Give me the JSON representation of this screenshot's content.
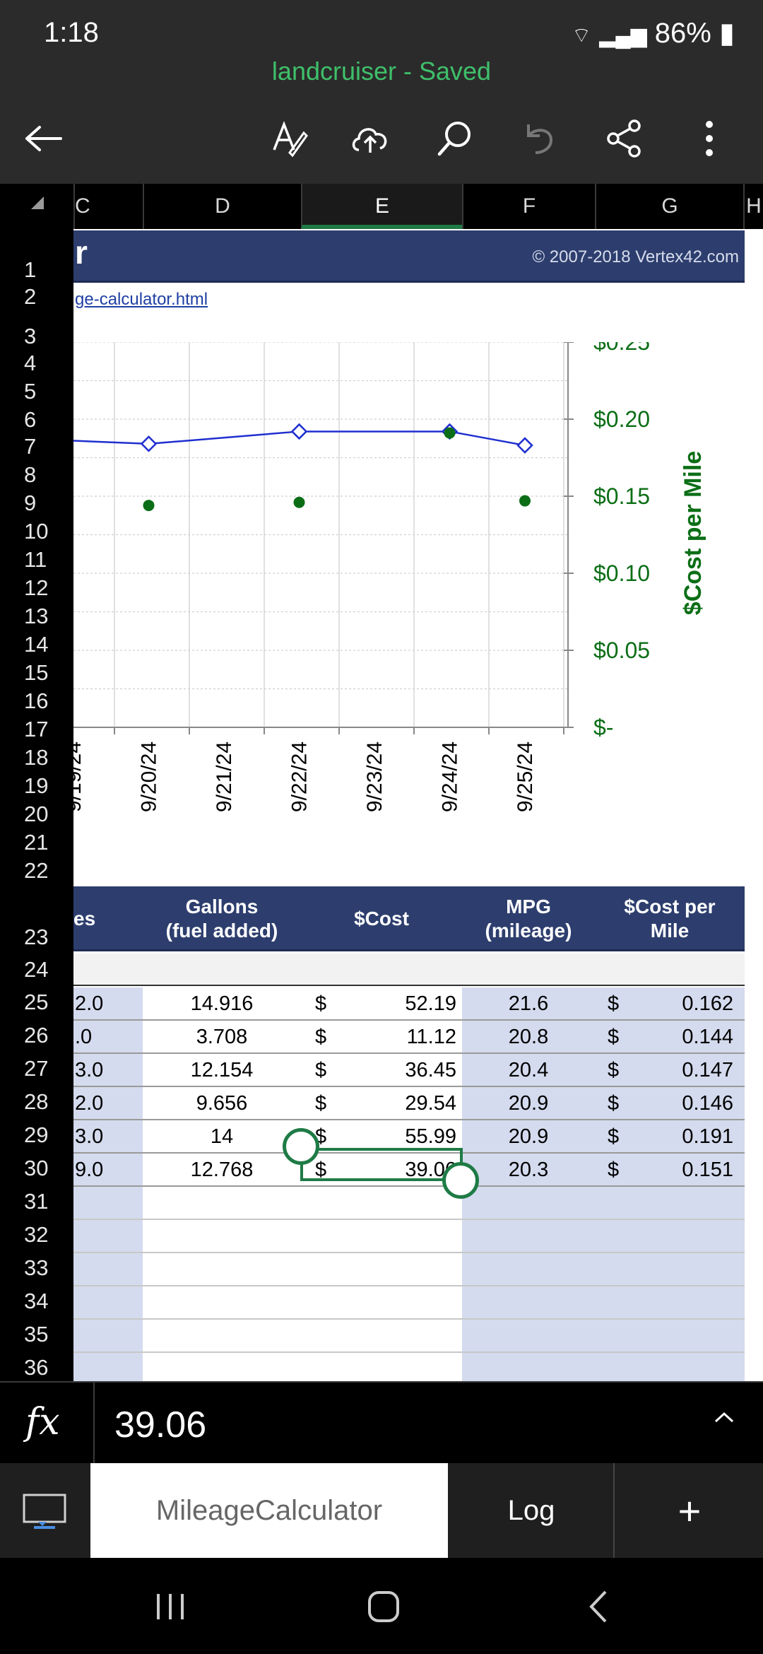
{
  "status": {
    "time": "1:18",
    "battery": "86%"
  },
  "title": "landcruiser - Saved",
  "toolbar": {
    "icons": [
      "back-arrow-icon",
      "draw-pen-icon",
      "cloud-upload-icon",
      "search-icon",
      "undo-icon",
      "share-icon",
      "more-vertical-icon"
    ]
  },
  "columns": {
    "c": "C",
    "d": "D",
    "e": "E",
    "f": "F",
    "g": "G",
    "h": "H"
  },
  "rows": [
    "1",
    "2",
    "3",
    "4",
    "5",
    "6",
    "7",
    "8",
    "9",
    "10",
    "11",
    "12",
    "13",
    "14",
    "15",
    "16",
    "17",
    "18",
    "19",
    "20",
    "21",
    "22",
    "23",
    "24",
    "25",
    "26",
    "27",
    "28",
    "29",
    "30",
    "31",
    "32",
    "33",
    "34",
    "35",
    "36"
  ],
  "sheet": {
    "banner_left": "r",
    "copyright": "© 2007-2018 Vertex42.com",
    "link": "ge-calculator.html"
  },
  "chart_data": {
    "type": "line",
    "x": [
      "9/19/24",
      "9/20/24",
      "9/21/24",
      "9/22/24",
      "9/23/24",
      "9/24/24",
      "9/25/24"
    ],
    "series": [
      {
        "name": "",
        "style": "line-diamond",
        "color": "#1f2fd0",
        "values": [
          0.186,
          0.184,
          null,
          0.192,
          null,
          0.192,
          0.183
        ]
      },
      {
        "name": "",
        "style": "dot",
        "color": "#0b6e16",
        "values": [
          null,
          0.144,
          null,
          0.146,
          null,
          0.191,
          0.147
        ]
      }
    ],
    "y2_ticks": [
      "$0.25",
      "$0.20",
      "$0.15",
      "$0.10",
      "$0.05",
      "$-"
    ],
    "y2_values": [
      0.25,
      0.2,
      0.15,
      0.1,
      0.05,
      0.0
    ],
    "y2label": "$Cost per Mile",
    "ylim": [
      0,
      0.25
    ],
    "grid": true,
    "y2_color": "#0b6e16"
  },
  "table": {
    "headers": {
      "c": "es",
      "d": "Gallons\n(fuel added)",
      "e": "$Cost",
      "f": "MPG\n(mileage)",
      "g": "$Cost per\nMile"
    },
    "rows": [
      {
        "c": "2.0",
        "d": "14.916",
        "e_cur": "$",
        "e": "52.19",
        "f": "21.6",
        "g_cur": "$",
        "g": "0.162"
      },
      {
        "c": ".0",
        "d": "3.708",
        "e_cur": "$",
        "e": "11.12",
        "f": "20.8",
        "g_cur": "$",
        "g": "0.144"
      },
      {
        "c": "3.0",
        "d": "12.154",
        "e_cur": "$",
        "e": "36.45",
        "f": "20.4",
        "g_cur": "$",
        "g": "0.147"
      },
      {
        "c": "2.0",
        "d": "9.656",
        "e_cur": "$",
        "e": "29.54",
        "f": "20.9",
        "g_cur": "$",
        "g": "0.146"
      },
      {
        "c": "3.0",
        "d": "14",
        "e_cur": "$",
        "e": "55.99",
        "f": "20.9",
        "g_cur": "$",
        "g": "0.191"
      },
      {
        "c": "9.0",
        "d": "12.768",
        "e_cur": "$",
        "e": "39.06",
        "f": "20.3",
        "g_cur": "$",
        "g": "0.151"
      }
    ]
  },
  "formula_bar": {
    "label": "fx",
    "value": "39.06"
  },
  "tabs": [
    {
      "label": "MileageCalculator",
      "active": true
    },
    {
      "label": "Log",
      "active": false
    },
    {
      "label": "+",
      "active": false
    }
  ],
  "colors": {
    "accent": "#1e7b45",
    "header_blue": "#2d3e6e",
    "stripe": "#d4dbee",
    "title_green": "#3fbf6a"
  }
}
